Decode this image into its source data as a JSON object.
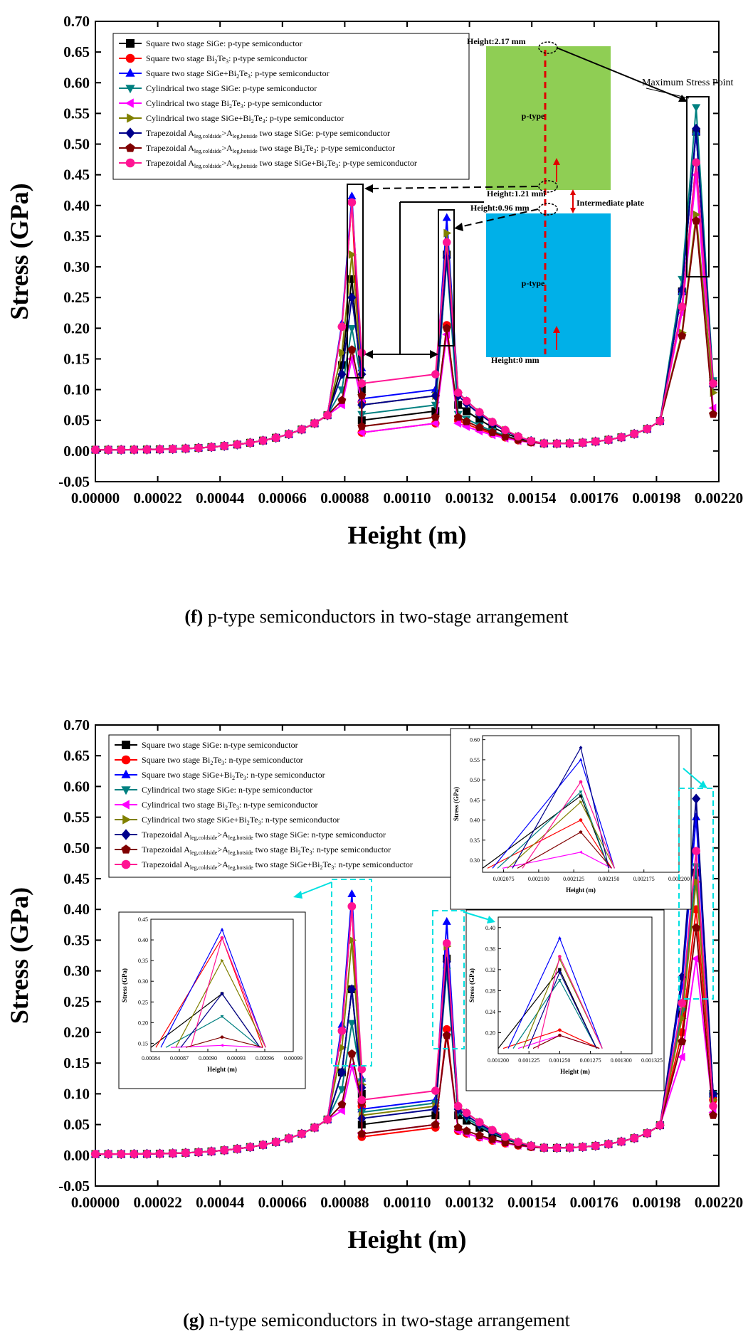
{
  "chart_data": [
    {
      "type": "line",
      "id": "f",
      "xlabel": "Height (m)",
      "ylabel": "Stress (GPa)",
      "xlim": [
        0,
        0.0022
      ],
      "ylim": [
        -0.05,
        0.7
      ],
      "xticks": [
        "0.00000",
        "0.00022",
        "0.00044",
        "0.00066",
        "0.00088",
        "0.00110",
        "0.00132",
        "0.00154",
        "0.00176",
        "0.00198",
        "0.00220"
      ],
      "yticks": [
        "-0.05",
        "0.00",
        "0.05",
        "0.10",
        "0.15",
        "0.20",
        "0.25",
        "0.30",
        "0.35",
        "0.40",
        "0.45",
        "0.50",
        "0.55",
        "0.60",
        "0.65",
        "0.70"
      ],
      "peaks": {
        "p1": 0.000905,
        "p2": 0.00124,
        "p3": 0.00212
      },
      "series": [
        {
          "name": "Square two stage SiGe: p-type semiconductor",
          "color": "#000000",
          "marker": "square",
          "peak1": 0.28,
          "peak2": 0.32,
          "peak3": 0.52,
          "mid1": 0.05,
          "mid2": 0.075,
          "tail": 0.11
        },
        {
          "name": "Square two stage Bi2Te3: p-type semiconductor",
          "color": "#ff0000",
          "marker": "circle",
          "peak1": 0.405,
          "peak2": 0.205,
          "peak3": 0.47,
          "mid1": 0.03,
          "mid2": 0.05,
          "tail": 0.11
        },
        {
          "name": "Square two stage SiGe+Bi2Te3: p-type semiconductor",
          "color": "#0000ff",
          "marker": "triangle-up",
          "peak1": 0.415,
          "peak2": 0.38,
          "peak3": 0.52,
          "mid1": 0.085,
          "mid2": 0.095,
          "tail": 0.11
        },
        {
          "name": "Cylindrical two stage SiGe: p-type semiconductor",
          "color": "#008080",
          "marker": "triangle-down",
          "peak1": 0.2,
          "peak2": 0.31,
          "peak3": 0.56,
          "mid1": 0.06,
          "mid2": 0.06,
          "tail": 0.115
        },
        {
          "name": "Cylindrical two stage Bi2Te3: p-type semiconductor",
          "color": "#ff00ff",
          "marker": "triangle-left",
          "peak1": 0.15,
          "peak2": 0.19,
          "peak3": 0.45,
          "mid1": 0.03,
          "mid2": 0.045,
          "tail": 0.07
        },
        {
          "name": "Cylindrical two stage SiGe+Bi2Te3: p-type semiconductor",
          "color": "#808000",
          "marker": "triangle-right",
          "peak1": 0.32,
          "peak2": 0.355,
          "peak3": 0.385,
          "mid1": 0.075,
          "mid2": 0.095,
          "tail": 0.095
        },
        {
          "name": "Trapezoidal Aleg,coldside>Aleg,hotside two stage SiGe: p-type semiconductor",
          "color": "#00008b",
          "marker": "diamond",
          "peak1": 0.25,
          "peak2": 0.315,
          "peak3": 0.525,
          "mid1": 0.075,
          "mid2": 0.09,
          "tail": 0.11
        },
        {
          "name": "Trapezoidal Aleg,coldside>Aleg,hotside two stage Bi2Te3: p-type semiconductor",
          "color": "#800000",
          "marker": "pentagon",
          "peak1": 0.165,
          "peak2": 0.2,
          "peak3": 0.375,
          "mid1": 0.04,
          "mid2": 0.055,
          "tail": 0.06
        },
        {
          "name": "Trapezoidal Aleg,coldside>Aleg,hotside two stage SiGe+Bi2Te3: p-type semiconductor",
          "color": "#ff1493",
          "marker": "circle",
          "peak1": 0.405,
          "peak2": 0.34,
          "peak3": 0.47,
          "mid1": 0.11,
          "mid2": 0.095,
          "tail": 0.11
        }
      ],
      "annotations": {
        "max_stress": "Maximum Stress Point",
        "h_top": "Height:2.17 mm",
        "h_mid1": "Height:1.21 mm",
        "h_mid2": "Height:0.96 mm",
        "h_bot": "Height:0 mm",
        "ptype_upper": "p-type",
        "ptype_lower": "p-type",
        "intermediate": "Intermediate plate"
      }
    },
    {
      "type": "line",
      "id": "g",
      "xlabel": "Height (m)",
      "ylabel": "Stress (GPa)",
      "xlim": [
        0,
        0.0022
      ],
      "ylim": [
        -0.05,
        0.7
      ],
      "xticks": [
        "0.00000",
        "0.00022",
        "0.00044",
        "0.00066",
        "0.00088",
        "0.00110",
        "0.00132",
        "0.00154",
        "0.00176",
        "0.00198",
        "0.00220"
      ],
      "yticks": [
        "-0.05",
        "0.00",
        "0.05",
        "0.10",
        "0.15",
        "0.20",
        "0.25",
        "0.30",
        "0.35",
        "0.40",
        "0.45",
        "0.50",
        "0.55",
        "0.60",
        "0.65",
        "0.70"
      ],
      "peaks": {
        "p1": 0.000905,
        "p2": 0.00124,
        "p3": 0.00212
      },
      "series": [
        {
          "name": "Square two stage SiGe: n-type semiconductor",
          "color": "#000000",
          "marker": "square",
          "peak1": 0.27,
          "peak2": 0.32,
          "peak3": 0.46,
          "mid1": 0.05,
          "mid2": 0.065,
          "tail": 0.1
        },
        {
          "name": "Square two stage Bi2Te3: n-type semiconductor",
          "color": "#ff0000",
          "marker": "circle",
          "peak1": 0.405,
          "peak2": 0.205,
          "peak3": 0.4,
          "mid1": 0.03,
          "mid2": 0.04,
          "tail": 0.09
        },
        {
          "name": "Square two stage SiGe+Bi2Te3: n-type semiconductor",
          "color": "#0000ff",
          "marker": "triangle-up",
          "peak1": 0.425,
          "peak2": 0.38,
          "peak3": 0.55,
          "mid1": 0.075,
          "mid2": 0.08,
          "tail": 0.1
        },
        {
          "name": "Cylindrical two stage SiGe: n-type semiconductor",
          "color": "#008080",
          "marker": "triangle-down",
          "peak1": 0.215,
          "peak2": 0.3,
          "peak3": 0.47,
          "mid1": 0.07,
          "mid2": 0.07,
          "tail": 0.1
        },
        {
          "name": "Cylindrical two stage Bi2Te3: n-type semiconductor",
          "color": "#ff00ff",
          "marker": "triangle-left",
          "peak1": 0.145,
          "peak2": 0.195,
          "peak3": 0.32,
          "mid1": 0.035,
          "mid2": 0.04,
          "tail": 0.07
        },
        {
          "name": "Cylindrical two stage SiGe+Bi2Te3: n-type semiconductor",
          "color": "#808000",
          "marker": "triangle-right",
          "peak1": 0.35,
          "peak2": 0.34,
          "peak3": 0.445,
          "mid1": 0.065,
          "mid2": 0.08,
          "tail": 0.09
        },
        {
          "name": "Trapezoidal Aleg,coldside>Aleg,hotside two stage SiGe: n-type semiconductor",
          "color": "#00008b",
          "marker": "diamond",
          "peak1": 0.27,
          "peak2": 0.315,
          "peak3": 0.58,
          "mid1": 0.06,
          "mid2": 0.075,
          "tail": 0.1
        },
        {
          "name": "Trapezoidal Aleg,coldside>Aleg,hotside two stage Bi2Te3: n-type semiconductor",
          "color": "#800000",
          "marker": "pentagon",
          "peak1": 0.165,
          "peak2": 0.195,
          "peak3": 0.37,
          "mid1": 0.035,
          "mid2": 0.045,
          "tail": 0.065
        },
        {
          "name": "Trapezoidal Aleg,coldside>Aleg,hotside two stage SiGe+Bi2Te3: n-type semiconductor",
          "color": "#ff1493",
          "marker": "circle",
          "peak1": 0.405,
          "peak2": 0.345,
          "peak3": 0.495,
          "mid1": 0.09,
          "mid2": 0.08,
          "tail": 0.08
        }
      ],
      "insets": [
        {
          "name": "inset-peak1",
          "xlabel": "Height (m)",
          "ylabel": "Stress (GPa)",
          "xlim": [
            0.00084,
            0.00099
          ],
          "ylim": [
            0.13,
            0.45
          ],
          "xticks": [
            "0.00084",
            "0.00087",
            "0.00090",
            "0.00093",
            "0.00096",
            "0.00099"
          ],
          "yticks": [
            "0.15",
            "0.20",
            "0.25",
            "0.30",
            "0.35",
            "0.40",
            "0.45"
          ],
          "peak_x": 0.000915,
          "base_x": 0.000955
        },
        {
          "name": "inset-peak2",
          "xlabel": "Height (m)",
          "ylabel": "Stress (GPa)",
          "xlim": [
            0.0012,
            0.001325
          ],
          "ylim": [
            0.16,
            0.42
          ],
          "xticks": [
            "0.001200",
            "0.001225",
            "0.001250",
            "0.001275",
            "0.001300",
            "0.001325"
          ],
          "yticks": [
            "0.20",
            "0.24",
            "0.28",
            "0.32",
            "0.36",
            "0.40"
          ],
          "peak_x": 0.00125,
          "base_x": 0.00128
        },
        {
          "name": "inset-peak3",
          "xlabel": "Height (m)",
          "ylabel": "Stress (GPa)",
          "xlim": [
            0.00206,
            0.0022
          ],
          "ylim": [
            0.27,
            0.61
          ],
          "xticks": [
            "0.002075",
            "0.002100",
            "0.002125",
            "0.002150",
            "0.002175",
            "0.002200"
          ],
          "yticks": [
            "0.30",
            "0.35",
            "0.40",
            "0.45",
            "0.50",
            "0.55",
            "0.60"
          ],
          "peak_x": 0.00213,
          "base_x": 0.00215
        }
      ]
    }
  ],
  "captions": {
    "f_letter": "(f)",
    "f_text": " p-type semiconductors in two-stage arrangement",
    "g_letter": "(g)",
    "g_text": " n-type semiconductors in two-stage arrangement"
  }
}
